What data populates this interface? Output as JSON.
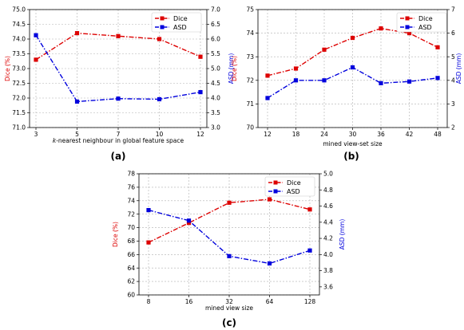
{
  "chart_data": [
    {
      "type": "line",
      "panel_label": "(a)",
      "xlabel": "k-nearest neighbour in global feature space",
      "xlabel_italic_prefix": "k",
      "xlabel_rest": "-nearest neighbour in global feature space",
      "categories": [
        "3",
        "5",
        "7",
        "10",
        "12"
      ],
      "ylabel_left": "Dice (%)",
      "ylabel_right": "ASD (mm)",
      "ylim_left": [
        71.0,
        75.0
      ],
      "yticks_left": [
        "71.0",
        "71.5",
        "72.0",
        "72.5",
        "73.0",
        "73.5",
        "74.0",
        "74.5",
        "75.0"
      ],
      "ylim_right": [
        3.0,
        7.0
      ],
      "yticks_right": [
        "3.0",
        "3.5",
        "4.0",
        "4.5",
        "5.0",
        "5.5",
        "6.0",
        "6.5",
        "7.0"
      ],
      "grid": true,
      "legend_position": "top-right",
      "series": [
        {
          "name": "Dice",
          "axis": "left",
          "color": "#dd0000",
          "marker": "square",
          "values": [
            73.3,
            74.2,
            74.1,
            74.0,
            73.4
          ]
        },
        {
          "name": "ASD",
          "axis": "right",
          "color": "#0000dd",
          "marker": "square",
          "values": [
            6.13,
            3.88,
            3.98,
            3.96,
            4.2
          ]
        }
      ]
    },
    {
      "type": "line",
      "panel_label": "(b)",
      "xlabel": "mined view-set size",
      "categories": [
        "12",
        "18",
        "24",
        "30",
        "36",
        "42",
        "48"
      ],
      "ylabel_left": "Dice (%)",
      "ylabel_right": "ASD (mm)",
      "ylim_left": [
        70,
        75
      ],
      "yticks_left": [
        "70",
        "71",
        "72",
        "73",
        "74",
        "75"
      ],
      "ylim_right": [
        2,
        7
      ],
      "yticks_right": [
        "2",
        "3",
        "4",
        "5",
        "6",
        "7"
      ],
      "grid": true,
      "legend_position": "top-right",
      "series": [
        {
          "name": "Dice",
          "axis": "left",
          "color": "#dd0000",
          "marker": "square",
          "values": [
            72.2,
            72.5,
            73.3,
            73.8,
            74.2,
            74.0,
            73.4
          ]
        },
        {
          "name": "ASD",
          "axis": "right",
          "color": "#0000dd",
          "marker": "square",
          "values": [
            3.25,
            4.0,
            4.0,
            4.55,
            3.88,
            3.95,
            4.1
          ]
        }
      ]
    },
    {
      "type": "line",
      "panel_label": "(c)",
      "xlabel": "mined view size",
      "categories": [
        "8",
        "16",
        "32",
        "64",
        "128"
      ],
      "ylabel_left": "Dice (%)",
      "ylabel_right": "ASD (mm)",
      "ylim_left": [
        60,
        78
      ],
      "yticks_left": [
        "60",
        "62",
        "64",
        "66",
        "68",
        "70",
        "72",
        "74",
        "76",
        "78"
      ],
      "ylim_right": [
        3.5,
        5.0
      ],
      "yticks_right": [
        "3.6",
        "3.8",
        "4.0",
        "4.2",
        "4.4",
        "4.6",
        "4.8",
        "5.0"
      ],
      "grid": true,
      "legend_position": "top-right",
      "series": [
        {
          "name": "Dice",
          "axis": "left",
          "color": "#dd0000",
          "marker": "square",
          "values": [
            67.8,
            70.7,
            73.7,
            74.2,
            72.7
          ]
        },
        {
          "name": "ASD",
          "axis": "right",
          "color": "#0000dd",
          "marker": "square",
          "values": [
            4.55,
            4.42,
            3.98,
            3.89,
            4.05
          ]
        }
      ]
    }
  ]
}
